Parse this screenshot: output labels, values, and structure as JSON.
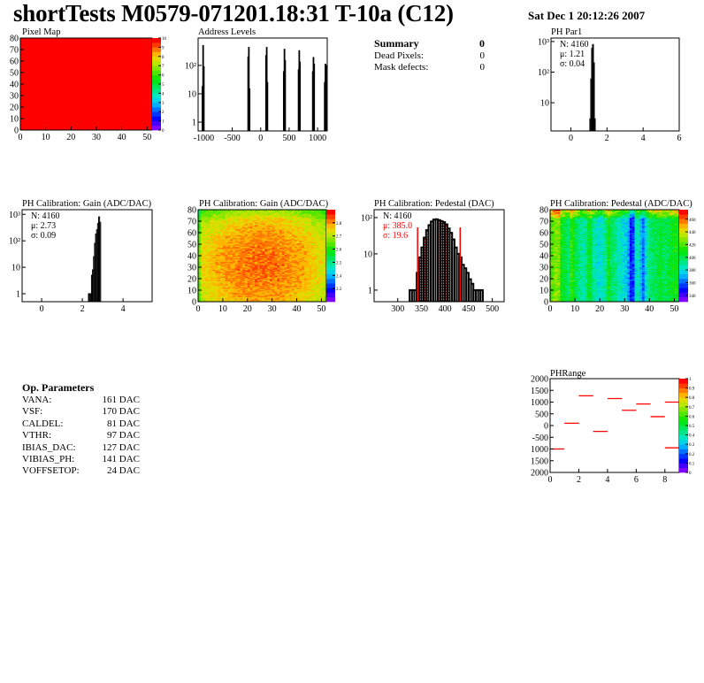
{
  "header": {
    "title": "shortTests M0579-071201.18:31 T-10a (C12)",
    "date": "Sat Dec  1 20:12:26 2007"
  },
  "summary": {
    "title": "Summary",
    "total": "0",
    "rows": [
      {
        "label": "Dead Pixels:",
        "value": "0"
      },
      {
        "label": "Mask defects:",
        "value": "0"
      }
    ]
  },
  "op_parameters": {
    "title": "Op. Parameters",
    "rows": [
      {
        "label": "VANA:",
        "value": "161 DAC"
      },
      {
        "label": "VSF:",
        "value": "170 DAC"
      },
      {
        "label": "CALDEL:",
        "value": "81 DAC"
      },
      {
        "label": "VTHR:",
        "value": "97 DAC"
      },
      {
        "label": "IBIAS_DAC:",
        "value": "127 DAC"
      },
      {
        "label": "VIBIAS_PH:",
        "value": "141 DAC"
      },
      {
        "label": "VOFFSETOP:",
        "value": "24 DAC"
      }
    ]
  },
  "chart_data": [
    {
      "id": "pixmap",
      "type": "heatmap",
      "title": "Pixel Map",
      "xlim": [
        0,
        52
      ],
      "ylim": [
        0,
        80
      ],
      "zlim": [
        0,
        10
      ],
      "uniform_value": 10,
      "xticks": [
        "0",
        "10",
        "20",
        "30",
        "40",
        "50"
      ],
      "yticks": [
        "0",
        "10",
        "20",
        "30",
        "40",
        "50",
        "60",
        "70",
        "80"
      ],
      "zticks": [
        "0",
        "1",
        "2",
        "3",
        "4",
        "5",
        "6",
        "7",
        "8",
        "9",
        "10"
      ]
    },
    {
      "id": "addr",
      "type": "bar",
      "title": "Address Levels",
      "log_y": true,
      "xlim": [
        -1100,
        1170
      ],
      "ylim": [
        0.49,
        920
      ],
      "xticks": [
        "-1000",
        "-500",
        "0",
        "500",
        "1000"
      ],
      "yticks": [
        "1",
        "10",
        "10²"
      ],
      "bin_width": 12,
      "x": [
        -1030,
        -1018,
        -1006,
        -226,
        -214,
        -202,
        88,
        100,
        112,
        400,
        412,
        424,
        660,
        672,
        684,
        910,
        922,
        934,
        1120,
        1132,
        1144
      ],
      "values": [
        18,
        500,
        90,
        200,
        430,
        15,
        220,
        430,
        25,
        60,
        370,
        150,
        70,
        330,
        130,
        60,
        190,
        110,
        25,
        110,
        100
      ]
    },
    {
      "id": "phpar1",
      "type": "bar",
      "title": "PH Par1",
      "log_y": true,
      "xlim": [
        -1.1,
        6
      ],
      "ylim": [
        1.2,
        1300
      ],
      "xticks": [
        "0",
        "2",
        "4",
        "6"
      ],
      "yticks": [
        "10",
        "10²",
        "10³"
      ],
      "stats": [
        "N: 4160",
        "μ: 1.21",
        "σ: 0.04"
      ],
      "bin_width": 0.05,
      "x": [
        1.05,
        1.1,
        1.15,
        1.2,
        1.25,
        1.3
      ],
      "values": [
        3,
        60,
        600,
        800,
        200,
        3
      ]
    },
    {
      "id": "gain",
      "type": "bar",
      "title": "PH Calibration: Gain (ADC/DAC)",
      "log_y": true,
      "xlim": [
        -0.96,
        5.43
      ],
      "ylim": [
        0.5,
        1500
      ],
      "xticks": [
        "0",
        "2",
        "4"
      ],
      "yticks": [
        "1",
        "10",
        "10²",
        "10³"
      ],
      "stats": [
        "N: 4160",
        "μ: 2.73",
        "σ: 0.09"
      ],
      "bin_width": 0.05,
      "x": [
        2.3,
        2.35,
        2.4,
        2.45,
        2.5,
        2.55,
        2.6,
        2.65,
        2.7,
        2.75,
        2.8,
        2.85
      ],
      "values": [
        1,
        1,
        1,
        5,
        8,
        25,
        80,
        180,
        260,
        450,
        800,
        500
      ]
    },
    {
      "id": "gainmap",
      "type": "heatmap",
      "title": "PH Calibration: Gain (ADC/DAC)",
      "xlim": [
        0,
        52
      ],
      "ylim": [
        0,
        80
      ],
      "zlim": [
        2.2,
        2.9
      ],
      "xticks": [
        "0",
        "10",
        "20",
        "30",
        "40",
        "50"
      ],
      "yticks": [
        "0",
        "10",
        "20",
        "30",
        "40",
        "50",
        "60",
        "70",
        "80"
      ],
      "zticks": [
        "2.3",
        "2.4",
        "2.5",
        "2.6",
        "2.7",
        "2.8"
      ]
    },
    {
      "id": "ped",
      "type": "bar",
      "title": "PH Calibration: Pedestal (DAC)",
      "log_y": true,
      "xlim": [
        250,
        525
      ],
      "ylim": [
        0.48,
        165
      ],
      "xticks": [
        "300",
        "350",
        "400",
        "450",
        "500"
      ],
      "yticks": [
        "1",
        "10",
        "10²"
      ],
      "stats": [
        "N: 4160",
        "μ: 385.0",
        "σ: 19.6"
      ],
      "fit_range": [
        342,
        432
      ],
      "bin_width": 5,
      "x": [
        325,
        330,
        335,
        340,
        345,
        350,
        355,
        360,
        365,
        370,
        375,
        380,
        385,
        390,
        395,
        400,
        405,
        410,
        415,
        420,
        425,
        430,
        435,
        440,
        445,
        450,
        455,
        460,
        465,
        470,
        475
      ],
      "values": [
        1,
        1,
        1,
        3,
        8,
        15,
        28,
        45,
        62,
        78,
        88,
        90,
        85,
        80,
        75,
        65,
        50,
        38,
        25,
        15,
        10,
        8,
        5,
        4,
        3,
        2,
        1.5,
        1,
        1,
        1,
        1
      ]
    },
    {
      "id": "pedmap",
      "type": "heatmap",
      "title": "PH Calibration: Pedestal (ADC/DAC)",
      "xlim": [
        0,
        52
      ],
      "ylim": [
        0,
        80
      ],
      "zlim": [
        330,
        475
      ],
      "xticks": [
        "0",
        "10",
        "20",
        "30",
        "40",
        "50"
      ],
      "yticks": [
        "0",
        "10",
        "20",
        "30",
        "40",
        "50",
        "60",
        "70",
        "80"
      ],
      "zticks": [
        "340",
        "360",
        "380",
        "400",
        "420",
        "440",
        "460"
      ],
      "column_profile": [
        420,
        425,
        428,
        426,
        410,
        405,
        400,
        395,
        415,
        410,
        400,
        395,
        390,
        388,
        392,
        405,
        402,
        390,
        385,
        380,
        382,
        388,
        392,
        410,
        400,
        395,
        392,
        388,
        385,
        380,
        378,
        370,
        352,
        355,
        380,
        385,
        372,
        362,
        378,
        390,
        395,
        398,
        400,
        402,
        405,
        400,
        398,
        402,
        405,
        408,
        410,
        405
      ]
    },
    {
      "id": "phrange",
      "type": "bar",
      "title": "PHRange",
      "xlim": [
        0,
        9
      ],
      "ylim": [
        -2000,
        2000
      ],
      "zlim": [
        0,
        1
      ],
      "xticks": [
        "0",
        "2",
        "4",
        "6",
        "8"
      ],
      "yticks": [
        "2000",
        "1500",
        "1000",
        "500",
        "0",
        "-500",
        "1000",
        "1500",
        "2000"
      ],
      "zticks": [
        "0",
        "0.1",
        "0.2",
        "0.3",
        "0.4",
        "0.5",
        "0.6",
        "0.7",
        "0.8",
        "0.9",
        "1"
      ],
      "x": [
        0,
        1,
        2,
        3,
        4,
        5,
        6,
        7,
        8,
        8
      ],
      "values": [
        -1000,
        100,
        1270,
        -250,
        1150,
        650,
        920,
        380,
        1000,
        -950
      ]
    }
  ]
}
